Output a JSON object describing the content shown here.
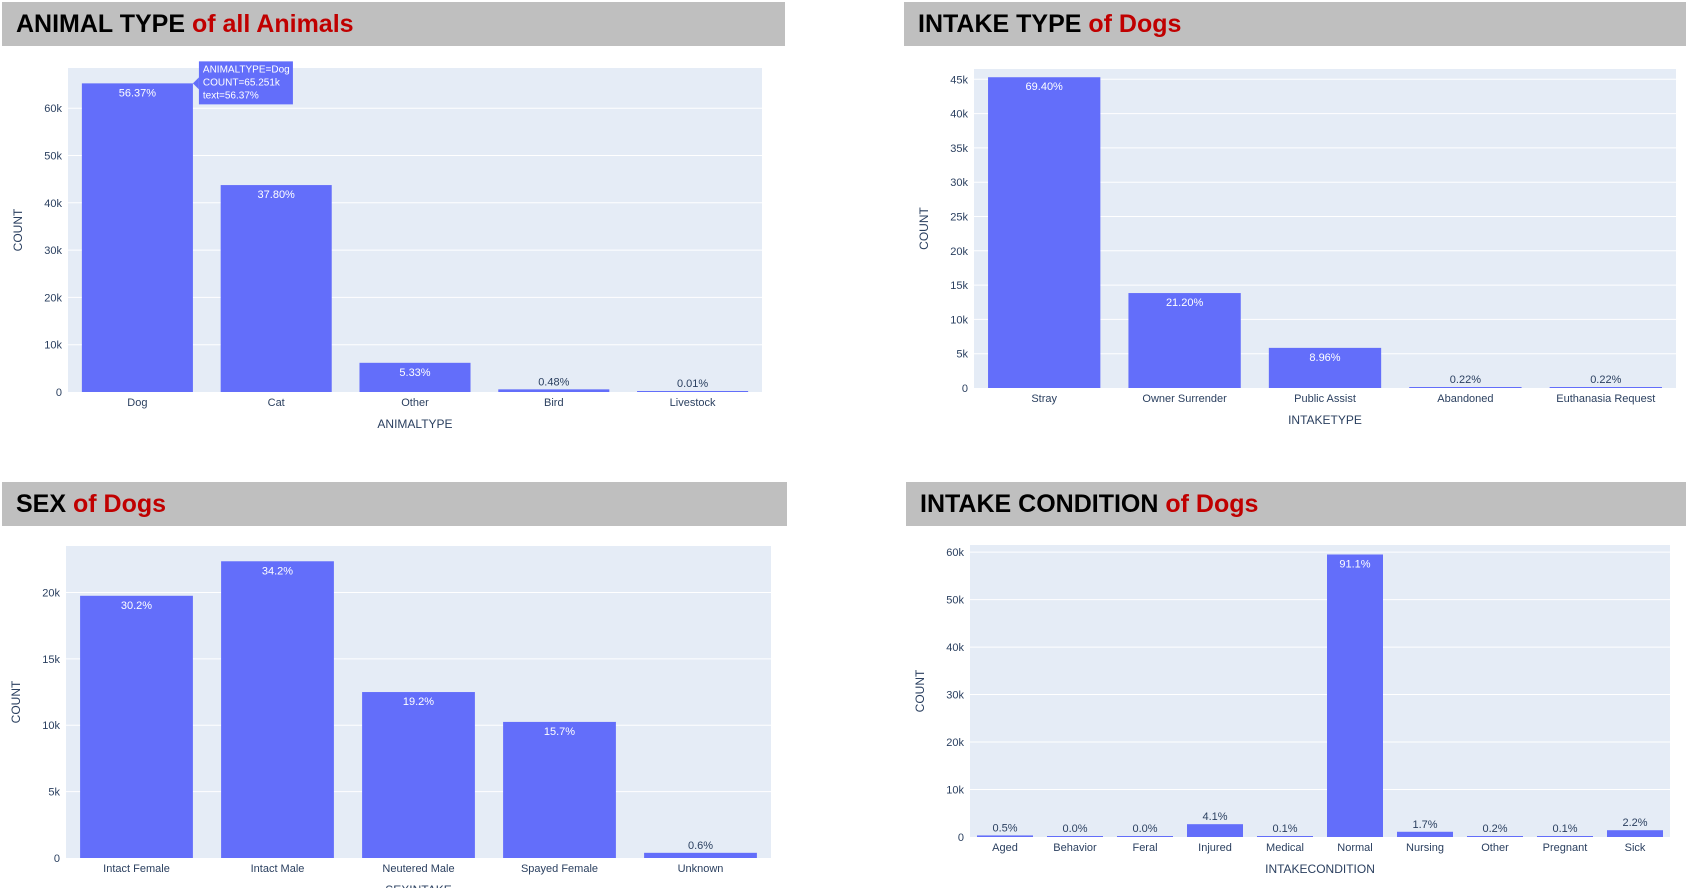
{
  "colors": {
    "plot_bg": "#e5ecf6",
    "bar": "#636efa",
    "grid": "#ffffff",
    "banner_bg": "#bfbfbf",
    "highlight": "#c00000"
  },
  "chart_data": [
    {
      "type": "bar",
      "title_black": "ANIMAL TYPE ",
      "title_red": "of all Animals",
      "xlabel": "ANIMALTYPE",
      "ylabel": "COUNT",
      "categories": [
        "Dog",
        "Cat",
        "Other",
        "Bird",
        "Livestock"
      ],
      "values": [
        65251,
        43750,
        6170,
        560,
        12
      ],
      "labels": [
        "56.37%",
        "37.80%",
        "5.33%",
        "0.48%",
        "0.01%"
      ],
      "ylim": [
        0,
        68500
      ],
      "yticks": [
        0,
        10000,
        20000,
        30000,
        40000,
        50000,
        60000
      ],
      "ytick_labels": [
        "0",
        "10k",
        "20k",
        "30k",
        "40k",
        "50k",
        "60k"
      ],
      "grid": true,
      "tooltip": {
        "category_index": 0,
        "lines": [
          "ANIMALTYPE=Dog",
          "COUNT=65.251k",
          "text=56.37%"
        ]
      }
    },
    {
      "type": "bar",
      "title_black": "INTAKE TYPE ",
      "title_red": "of Dogs",
      "xlabel": "INTAKETYPE",
      "ylabel": "COUNT",
      "categories": [
        "Stray",
        "Owner Surrender",
        "Public Assist",
        "Abandoned",
        "Euthanasia Request"
      ],
      "values": [
        45300,
        13840,
        5850,
        145,
        145
      ],
      "labels": [
        "69.40%",
        "21.20%",
        "8.96%",
        "0.22%",
        "0.22%"
      ],
      "ylim": [
        0,
        46500
      ],
      "yticks": [
        0,
        5000,
        10000,
        15000,
        20000,
        25000,
        30000,
        35000,
        40000,
        45000
      ],
      "ytick_labels": [
        "0",
        "5k",
        "10k",
        "15k",
        "20k",
        "25k",
        "30k",
        "35k",
        "40k",
        "45k"
      ],
      "grid": true
    },
    {
      "type": "bar",
      "title_black": "SEX ",
      "title_red": "of Dogs",
      "xlabel": "SEXINTAKE",
      "ylabel": "COUNT",
      "categories": [
        "Intact Female",
        "Intact Male",
        "Neutered Male",
        "Spayed Female",
        "Unknown"
      ],
      "values": [
        19750,
        22350,
        12500,
        10250,
        390
      ],
      "labels": [
        "30.2%",
        "34.2%",
        "19.2%",
        "15.7%",
        "0.6%"
      ],
      "ylim": [
        0,
        23500
      ],
      "yticks": [
        0,
        5000,
        10000,
        15000,
        20000
      ],
      "ytick_labels": [
        "0",
        "5k",
        "10k",
        "15k",
        "20k"
      ],
      "grid": true
    },
    {
      "type": "bar",
      "title_black": "INTAKE CONDITION ",
      "title_red": "of Dogs",
      "xlabel": "INTAKECONDITION",
      "ylabel": "COUNT",
      "categories": [
        "Aged",
        "Behavior",
        "Feral",
        "Injured",
        "Medical",
        "Normal",
        "Nursing",
        "Other",
        "Pregnant",
        "Sick"
      ],
      "values": [
        330,
        10,
        10,
        2700,
        65,
        59500,
        1100,
        130,
        65,
        1430
      ],
      "labels": [
        "0.5%",
        "0.0%",
        "0.0%",
        "4.1%",
        "0.1%",
        "91.1%",
        "1.7%",
        "0.2%",
        "0.1%",
        "2.2%"
      ],
      "ylim": [
        0,
        61500
      ],
      "yticks": [
        0,
        10000,
        20000,
        30000,
        40000,
        50000,
        60000
      ],
      "ytick_labels": [
        "0",
        "10k",
        "20k",
        "30k",
        "40k",
        "50k",
        "60k"
      ],
      "grid": true
    }
  ]
}
